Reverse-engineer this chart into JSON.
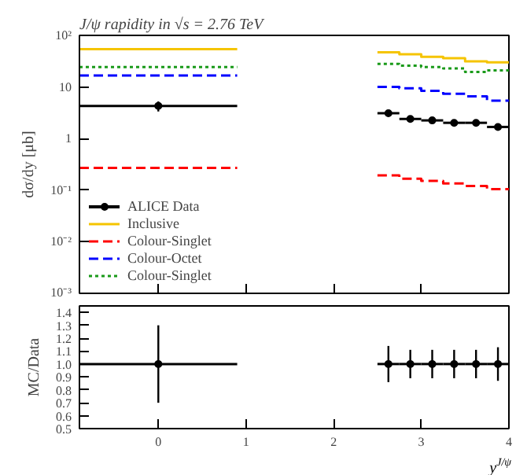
{
  "chart_data": [
    {
      "type": "step",
      "title": "J/ψ rapidity in √s = 2.76 TeV",
      "ylabel": "dσ/dy [μb]",
      "log": "y",
      "xlim": [
        -0.9,
        4
      ],
      "ylim": [
        0.001,
        100
      ],
      "xticks": [
        0,
        1,
        2,
        3,
        4
      ],
      "yticks": [
        {
          "value": 0.001,
          "label": "10⁻³"
        },
        {
          "value": 0.01,
          "label": "10⁻²"
        },
        {
          "value": 0.1,
          "label": "10⁻¹"
        },
        1,
        10,
        {
          "value": 100,
          "label": "10²"
        }
      ],
      "tick_labels": "y",
      "legend": "bottom left",
      "series": [
        {
          "name": "ALICE Data",
          "type": "scatter",
          "marker": "circle",
          "color": "#000000",
          "x": [
            0,
            2.625,
            2.875,
            3.125,
            3.375,
            3.625,
            3.875
          ],
          "values": [
            4.3,
            3.1,
            2.4,
            2.25,
            2.02,
            2.02,
            1.68
          ],
          "errors": [
            0.95,
            0.43,
            0.27,
            0.25,
            0.22,
            0.22,
            0.22
          ],
          "xerrors": [
            0.9,
            0.125,
            0.125,
            0.125,
            0.125,
            0.125,
            0.125
          ]
        },
        {
          "name": "Inclusive",
          "color": "#f5c400",
          "line_style": "solid",
          "x": [
            -0.9,
            0.9,
            2.5,
            2.75,
            3.0,
            3.25,
            3.5,
            3.75,
            4.0
          ],
          "values": [
            54,
            null,
            47,
            43,
            38.5,
            36,
            31.4,
            30,
            30
          ]
        },
        {
          "name": "Colour-Singlet",
          "color": "#ff0000",
          "line_style": "dashed",
          "x": [
            -0.9,
            0.9,
            2.5,
            2.75,
            3.0,
            3.25,
            3.5,
            3.75,
            4.0
          ],
          "values": [
            0.27,
            null,
            0.194,
            0.166,
            0.151,
            0.135,
            0.12,
            0.105,
            0.105
          ]
        },
        {
          "name": "Colour-Octet",
          "color": "#0000ff",
          "line_style": "dashed",
          "x": [
            -0.9,
            0.9,
            2.5,
            2.75,
            3.0,
            3.25,
            3.5,
            3.75,
            4.0
          ],
          "values": [
            16.7,
            null,
            10,
            9.4,
            8.4,
            7.4,
            6.6,
            5.45,
            5.45
          ]
        },
        {
          "name": "Colour-Singlet",
          "color": "#1a9a1a",
          "line_style": "dotted",
          "x": [
            -0.9,
            0.9,
            2.5,
            2.75,
            3.0,
            3.25,
            3.5,
            3.75,
            4.0
          ],
          "values": [
            24.4,
            null,
            28,
            26,
            24.4,
            22.8,
            19.5,
            21,
            21
          ]
        }
      ]
    },
    {
      "type": "scatter",
      "xlabel": "y$^{J/ψ}$",
      "ylabel": "MC/Data",
      "marker": "circle",
      "xlim": [
        -0.9,
        4
      ],
      "ylim": [
        0.5,
        1.45
      ],
      "xticks": [
        0,
        1,
        2,
        3,
        4
      ],
      "yticks": [
        0.5,
        0.6,
        0.7,
        0.8,
        0.9,
        {
          "value": 1,
          "label": "1.0"
        },
        1.1,
        1.2,
        1.3,
        1.4
      ],
      "series": [
        {
          "color": "#000000",
          "x": [
            0,
            2.625,
            2.875,
            3.125,
            3.375,
            3.625,
            3.875
          ],
          "values": [
            1,
            1,
            1,
            1,
            1,
            1,
            1
          ],
          "errors": [
            0.3,
            0.14,
            0.11,
            0.11,
            0.11,
            0.11,
            0.13
          ],
          "xerrors": [
            0.9,
            0.125,
            0.125,
            0.125,
            0.125,
            0.125,
            0.125
          ]
        }
      ]
    }
  ]
}
